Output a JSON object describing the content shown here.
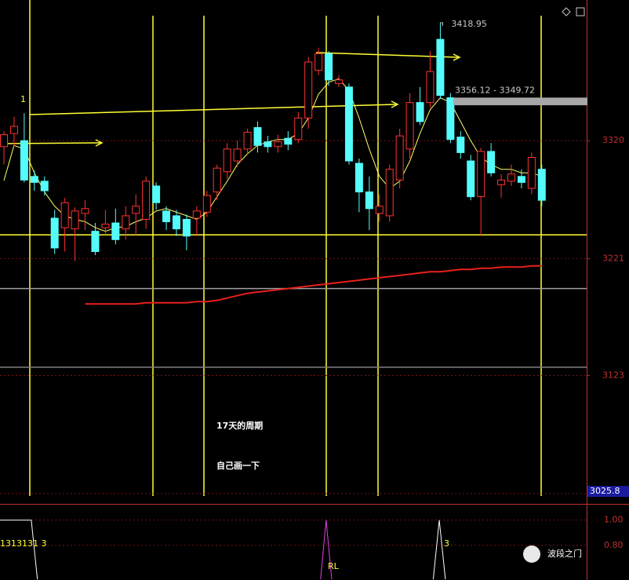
{
  "chart_data": [
    {
      "type": "candlestick",
      "open": [
        3315,
        3326,
        3320,
        3290,
        3286,
        3255,
        3247,
        3246,
        3259,
        3244,
        3247,
        3251,
        3246,
        3259,
        3254,
        3282,
        3261,
        3257,
        3254,
        3255,
        3260,
        3277,
        3294,
        3303,
        3313,
        3331,
        3319,
        3315,
        3322,
        3321,
        3339,
        3379,
        3393,
        3368,
        3365,
        3301,
        3277,
        3259,
        3257,
        3287,
        3313,
        3352,
        3352,
        3405,
        3356,
        3323,
        3303,
        3273,
        3311,
        3283,
        3286,
        3290,
        3280,
        3296
      ],
      "close": [
        3325,
        3332,
        3287,
        3285,
        3278,
        3230,
        3268,
        3261,
        3263,
        3227,
        3250,
        3237,
        3257,
        3265,
        3286,
        3268,
        3252,
        3246,
        3240,
        3261,
        3274,
        3297,
        3313,
        3313,
        3327,
        3316,
        3315,
        3319,
        3317,
        3339,
        3386,
        3393,
        3371,
        3371,
        3303,
        3277,
        3263,
        3265,
        3296,
        3324,
        3352,
        3336,
        3378,
        3358,
        3321,
        3310,
        3273,
        3311,
        3293,
        3287,
        3292,
        3285,
        3306,
        3270
      ],
      "high": [
        3328,
        3340,
        3343,
        3295,
        3290,
        3262,
        3272,
        3264,
        3270,
        3251,
        3262,
        3263,
        3265,
        3275,
        3290,
        3285,
        3265,
        3262,
        3258,
        3265,
        3278,
        3300,
        3318,
        3320,
        3330,
        3336,
        3324,
        3325,
        3328,
        3344,
        3390,
        3398,
        3395,
        3375,
        3368,
        3305,
        3290,
        3275,
        3300,
        3330,
        3360,
        3365,
        3395,
        3418.95,
        3360,
        3328,
        3308,
        3314,
        3318,
        3292,
        3300,
        3296,
        3310,
        3300
      ],
      "low": [
        3300,
        3315,
        3285,
        3278,
        3274,
        3225,
        3227,
        3219,
        3245,
        3224,
        3240,
        3233,
        3237,
        3240,
        3246,
        3262,
        3245,
        3240,
        3228,
        3240,
        3256,
        3270,
        3288,
        3298,
        3308,
        3310,
        3310,
        3310,
        3312,
        3318,
        3330,
        3375,
        3366,
        3365,
        3300,
        3260,
        3245,
        3252,
        3252,
        3280,
        3305,
        3333,
        3348,
        3355,
        3318,
        3305,
        3270,
        3240,
        3290,
        3272,
        3282,
        3280,
        3275,
        3265
      ],
      "up_color": "#ff3232",
      "down_color": "#54fcfc",
      "lines": [
        {
          "color": "#ffff66",
          "values": [
            3286.5,
            3316,
            3313,
            3293,
            3277,
            3265,
            3257,
            3254,
            3252,
            3247,
            3244,
            3247,
            3248,
            3252,
            3255,
            3261,
            3263,
            3260,
            3257,
            3254,
            3260,
            3273,
            3286,
            3300,
            3309,
            3316,
            3319,
            3321,
            3321,
            3326,
            3339,
            3359,
            3369,
            3372,
            3362,
            3339,
            3313,
            3290,
            3280,
            3286,
            3303,
            3326,
            3346,
            3356,
            3352,
            3336,
            3320,
            3306,
            3300,
            3296,
            3296,
            3293,
            3293,
            3290
          ]
        },
        {
          "color": "#e8201a",
          "values": [
            null,
            null,
            null,
            null,
            null,
            null,
            null,
            null,
            3183,
            3183,
            3183,
            3183,
            3183,
            3183,
            3184,
            3184,
            3184,
            3184,
            3184,
            3185,
            3185,
            3186,
            3188,
            3190,
            3192,
            3193,
            3194,
            3195,
            3196,
            3197,
            3198,
            3199,
            3200,
            3201,
            3202,
            3203,
            3204,
            3205,
            3206,
            3207,
            3208,
            3209,
            3210,
            3210,
            3211,
            3212,
            3212,
            3213,
            3213,
            3214,
            3214,
            3214,
            3215,
            3215
          ]
        }
      ],
      "levels": [
        {
          "value": 3241,
          "color": "#ffff33"
        },
        {
          "value": 3196,
          "color": "#a0a0a0"
        },
        {
          "value": 3130,
          "color": "#808080"
        }
      ],
      "ylim": [
        3016,
        3438
      ],
      "yticks": [
        3320,
        3221,
        3123,
        3024
      ],
      "grid": true,
      "high_label": 3418.95,
      "range_label": {
        "text": "3356.12 - 3349.72",
        "values": [
          3356.12,
          3349.72
        ]
      },
      "price_marker": 3025.8,
      "annotations": [
        "17天的周期",
        "自己画一下"
      ],
      "wave_label": "1"
    },
    {
      "type": "line",
      "series": [
        {
          "color": "#ffffff",
          "x": [
            -0.4,
            2.7,
            3.3
          ],
          "values": [
            1.0,
            1.0,
            0.53
          ]
        },
        {
          "color": "#e040e0",
          "x": [
            31.2,
            31.75,
            32.3
          ],
          "values": [
            0.53,
            1.0,
            0.53
          ]
        },
        {
          "color": "#ffffff",
          "x": [
            42.3,
            42.9,
            43.5
          ],
          "values": [
            0.53,
            1.0,
            0.53
          ]
        }
      ],
      "ylim": [
        0.525,
        1.11
      ],
      "yticks": [
        {
          "value": 1,
          "label": "1.00"
        },
        {
          "value": 0.8,
          "label": "0.80"
        }
      ],
      "texts": [
        "1313131 3",
        "RL",
        "3"
      ],
      "watermark": "波段之门"
    }
  ]
}
